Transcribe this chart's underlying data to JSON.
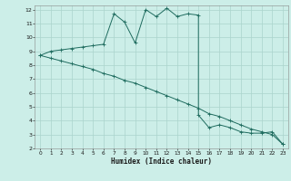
{
  "title": "",
  "xlabel": "Humidex (Indice chaleur)",
  "bg_color": "#cceee8",
  "grid_color": "#aad4cc",
  "line_color": "#1e6b5e",
  "xlim": [
    -0.5,
    23.5
  ],
  "ylim": [
    2,
    12.3
  ],
  "xtick_labels": [
    "0",
    "1",
    "2",
    "3",
    "4",
    "5",
    "6",
    "7",
    "8",
    "9",
    "10",
    "11",
    "12",
    "13",
    "14",
    "15",
    "16",
    "17",
    "18",
    "19",
    "20",
    "21",
    "22",
    "23"
  ],
  "xtick_vals": [
    0,
    1,
    2,
    3,
    4,
    5,
    6,
    7,
    8,
    9,
    10,
    11,
    12,
    13,
    14,
    15,
    16,
    17,
    18,
    19,
    20,
    21,
    22,
    23
  ],
  "ytick_vals": [
    2,
    3,
    4,
    5,
    6,
    7,
    8,
    9,
    10,
    11,
    12
  ],
  "curve1_x": [
    0,
    1,
    2,
    3,
    4,
    5,
    6,
    7,
    8,
    9,
    10,
    11,
    12,
    13,
    14,
    15,
    15,
    16,
    17,
    18,
    19,
    20,
    21,
    22,
    23
  ],
  "curve1_y": [
    8.7,
    9.0,
    9.1,
    9.2,
    9.3,
    9.4,
    9.5,
    11.7,
    11.1,
    9.6,
    12.0,
    11.5,
    12.1,
    11.5,
    11.7,
    11.6,
    4.4,
    3.5,
    3.7,
    3.5,
    3.2,
    3.1,
    3.1,
    3.2,
    2.3
  ],
  "curve2_x": [
    0,
    1,
    2,
    3,
    4,
    5,
    6,
    7,
    8,
    9,
    10,
    11,
    12,
    13,
    14,
    15,
    16,
    17,
    18,
    19,
    20,
    21,
    22,
    23
  ],
  "curve2_y": [
    8.7,
    8.5,
    8.3,
    8.1,
    7.9,
    7.7,
    7.4,
    7.2,
    6.9,
    6.7,
    6.4,
    6.1,
    5.8,
    5.5,
    5.2,
    4.9,
    4.5,
    4.3,
    4.0,
    3.7,
    3.4,
    3.2,
    3.0,
    2.3
  ]
}
